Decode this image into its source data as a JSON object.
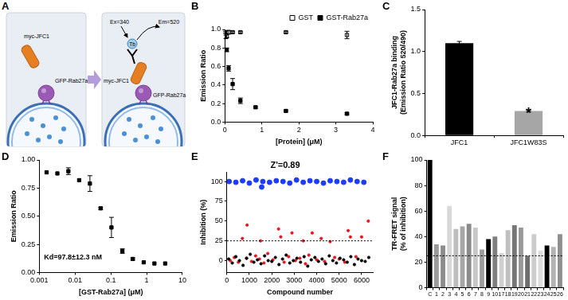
{
  "diagram": {
    "panel": "A",
    "left": {
      "protein": "myc-JFC1",
      "vesicle_protein": "GFP-Rab27a"
    },
    "right": {
      "protein": "myc-JFC1",
      "excitation": "Ex=340",
      "donor": "Tb",
      "emission": "Em=520",
      "vesicle_protein": "GFP-Rab27a"
    }
  },
  "chart_data": [
    {
      "panel": "B",
      "type": "scatter",
      "xlabel": "[Protein] (μM)",
      "ylabel": "Emission Ratio",
      "xlim": [
        0,
        4
      ],
      "xticks": [
        0,
        1,
        2,
        3,
        4
      ],
      "ylim": [
        0,
        1
      ],
      "yticks": [
        {
          "value": 0,
          "label": "0.0"
        },
        {
          "value": 0.2,
          "label": "0.2"
        },
        {
          "value": 0.4,
          "label": "0.4"
        },
        {
          "value": 0.6,
          "label": "0.6"
        },
        {
          "value": 0.8,
          "label": "0.8"
        },
        {
          "value": 1,
          "label": "1.0"
        }
      ],
      "grid": false,
      "legend": "top-right",
      "series": [
        {
          "name": "GST",
          "color": "#000000",
          "marker": "square_open",
          "x": [
            0.05,
            0.1,
            0.21,
            0.42,
            1.65,
            3.3
          ],
          "values": [
            0.93,
            0.97,
            0.97,
            0.97,
            0.97,
            0.94
          ],
          "errors": [
            0.02,
            0.02,
            0.01,
            0.01,
            0.01,
            0.04
          ]
        },
        {
          "name": "GST-Rab27a",
          "color": "#000000",
          "marker": "square",
          "x": [
            0.013,
            0.026,
            0.05,
            0.1,
            0.21,
            0.42,
            0.83,
            1.65,
            3.3
          ],
          "values": [
            0.97,
            0.92,
            0.78,
            0.58,
            0.41,
            0.23,
            0.16,
            0.12,
            0.09
          ],
          "errors": [
            0.01,
            0.02,
            0.02,
            0.03,
            0.06,
            0.03,
            0.01,
            0.01,
            0.01
          ]
        }
      ]
    },
    {
      "panel": "C",
      "type": "bar",
      "categories": [
        "JFC1",
        "JFC1W83S"
      ],
      "values": [
        1.1,
        0.29
      ],
      "errors": [
        0.02,
        0.01
      ],
      "colors": [
        "#000000",
        "#a6a6a6"
      ],
      "ylabel": [
        "JFC1-Rab27a binding",
        "(Emission Ratio 520/490)"
      ],
      "ylim": [
        0,
        1.5
      ],
      "yticks": [
        {
          "value": 0,
          "label": "0.0"
        },
        {
          "value": 0.5,
          "label": "0.5"
        },
        {
          "value": 1,
          "label": "1.0"
        },
        {
          "value": 1.5,
          "label": "1.5"
        }
      ],
      "grid": false,
      "annotation": {
        "text": "*",
        "category": "JFC1W83S"
      }
    },
    {
      "panel": "D",
      "type": "scatter",
      "log": "x",
      "xlabel": "[GST-Rab27a] (μM)",
      "ylabel": "Emission Ratio",
      "xlim": [
        0.001,
        10
      ],
      "xticks": [
        0.001,
        0.01,
        0.1,
        1,
        10
      ],
      "ylim": [
        0,
        1
      ],
      "yticks": [
        {
          "value": 0,
          "label": "0.00"
        },
        {
          "value": 0.25,
          "label": "0.25"
        },
        {
          "value": 0.5,
          "label": "0.50"
        },
        {
          "value": 0.75,
          "label": "0.75"
        },
        {
          "value": 1,
          "label": "1.00"
        }
      ],
      "grid": false,
      "annotation": "Kd=97.8±12.3 nM",
      "series": [
        {
          "color": "#000000",
          "marker": "square",
          "x": [
            0.0016,
            0.0032,
            0.0065,
            0.013,
            0.026,
            0.052,
            0.104,
            0.21,
            0.41,
            0.83,
            1.65,
            3.3
          ],
          "values": [
            0.89,
            0.88,
            0.9,
            0.82,
            0.79,
            0.57,
            0.4,
            0.19,
            0.12,
            0.09,
            0.08,
            0.08
          ],
          "errors": [
            0,
            0,
            0.03,
            0,
            0.07,
            0.01,
            0.09,
            0.02,
            0.01,
            0,
            0,
            0
          ]
        }
      ]
    },
    {
      "panel": "E",
      "type": "scatter",
      "title": "Z'=0.89",
      "xlabel": "Compound number",
      "ylabel": "Inhibition (%)",
      "xlim": [
        0,
        6500
      ],
      "xticks": [
        0,
        1000,
        2000,
        3000,
        4000,
        5000,
        6000
      ],
      "ylim": [
        -15,
        112
      ],
      "yticks": [
        0,
        25,
        50,
        75,
        100
      ],
      "grid": false,
      "marker": "circle",
      "reference_line": 25,
      "series": [
        {
          "color": "#1e3cff",
          "x": [
            100,
            400,
            700,
            1000,
            1300,
            1600,
            1900,
            2200,
            2500,
            2800,
            3100,
            3400,
            3700,
            4000,
            4300,
            4600,
            4900,
            5200,
            5500,
            5800,
            6100,
            1550
          ],
          "values": [
            100,
            99,
            101,
            98,
            102,
            100,
            99,
            101,
            100,
            98,
            102,
            99,
            101,
            100,
            98,
            101,
            100,
            99,
            102,
            100,
            99,
            93
          ]
        },
        {
          "color": "#000000",
          "x": [
            80,
            240,
            400,
            560,
            720,
            880,
            1040,
            1200,
            1360,
            1520,
            1680,
            1840,
            2000,
            2160,
            2320,
            2480,
            2640,
            2800,
            2960,
            3120,
            3280,
            3440,
            3600,
            3760,
            3920,
            4080,
            4240,
            4400,
            4560,
            4720,
            4880,
            5040,
            5200,
            5360,
            5520,
            5680,
            5840,
            6000,
            6160,
            6320
          ],
          "values": [
            2,
            -3,
            5,
            0,
            -6,
            3,
            8,
            -2,
            1,
            -4,
            6,
            0,
            -1,
            4,
            -5,
            2,
            7,
            -3,
            0,
            3,
            -2,
            5,
            -7,
            1,
            4,
            -1,
            2,
            -4,
            6,
            0,
            -3,
            3,
            1,
            -2,
            5,
            -5,
            2,
            0,
            -1,
            4
          ]
        },
        {
          "color": "#e8141e",
          "x": [
            150,
            330,
            510,
            690,
            870,
            900,
            1100,
            1280,
            1450,
            1500,
            1650,
            1820,
            2050,
            2300,
            2400,
            2550,
            2750,
            2900,
            3050,
            3250,
            3400,
            3500,
            3650,
            3800,
            4000,
            4200,
            4350,
            4600,
            4800,
            5000,
            5250,
            5400,
            5500,
            5750,
            6000,
            6300
          ],
          "values": [
            0,
            4,
            -2,
            28,
            3,
            45,
            -1,
            6,
            2,
            25,
            -3,
            9,
            1,
            40,
            30,
            -2,
            5,
            35,
            0,
            3,
            25,
            -4,
            7,
            35,
            1,
            28,
            -1,
            24,
            4,
            2,
            -2,
            38,
            30,
            5,
            30,
            50
          ]
        }
      ]
    },
    {
      "panel": "F",
      "type": "bar",
      "categories": [
        "C",
        "1",
        "2",
        "3",
        "4",
        "5",
        "6",
        "7",
        "8",
        "9",
        "10",
        "17",
        "18",
        "19",
        "20",
        "21",
        "22",
        "23",
        "24",
        "25",
        "26"
      ],
      "values": [
        100,
        34,
        33,
        64,
        46,
        48,
        50,
        47,
        30,
        38,
        40,
        27,
        45,
        49,
        47,
        25,
        42,
        29,
        33,
        32,
        42
      ],
      "colors": [
        "#000000",
        "#9a9a9a",
        "#8c8c8c",
        "#d9d9d9",
        "#bdbdbd",
        "#a6a6a6",
        "#8a8a8a",
        "#c8c8c8",
        "#9e9e9e",
        "#000000",
        "#7f7f7f",
        "#cfcfcf",
        "#bfbfbf",
        "#777777",
        "#999999",
        "#6e6e6e",
        "#cccccc",
        "#dddddd",
        "#000000",
        "#b3b3b3",
        "#8f8f8f"
      ],
      "ylabel": [
        "TR-FRET signal",
        "(% of inhibition)"
      ],
      "ylim": [
        0,
        100
      ],
      "yticks": [
        0,
        20,
        40,
        60,
        80,
        100
      ],
      "grid": false,
      "reference_line": 25
    }
  ]
}
